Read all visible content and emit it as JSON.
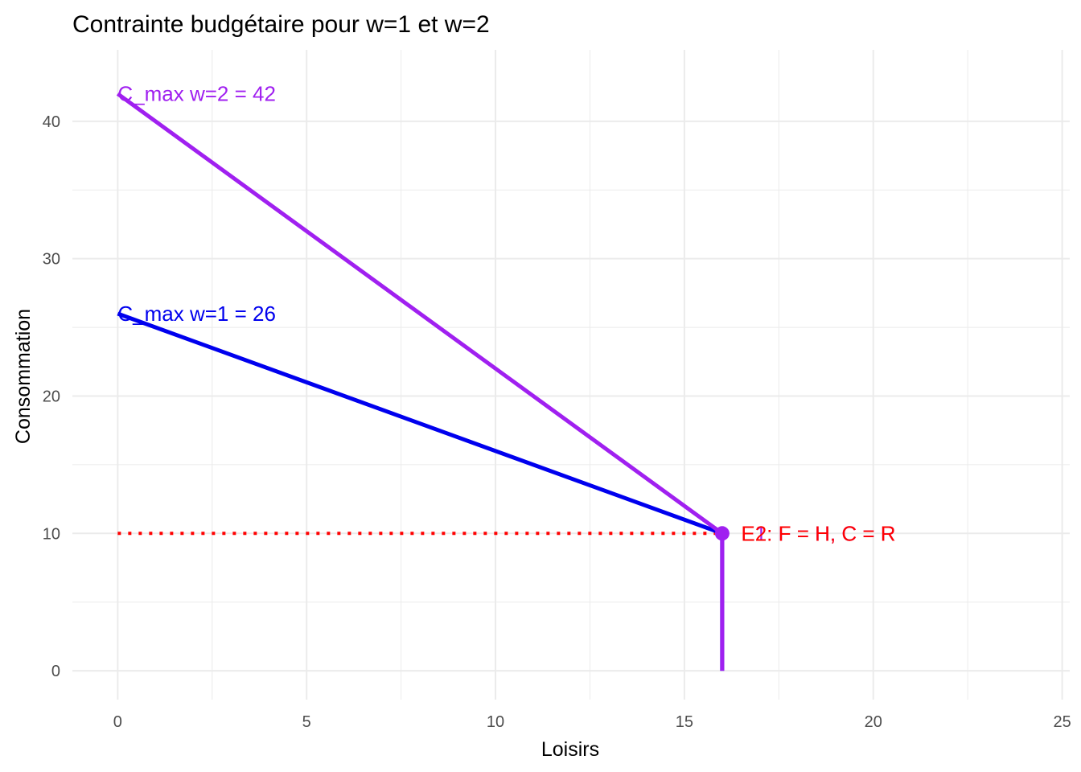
{
  "chart_data": {
    "type": "line",
    "title": "Contrainte budgétaire pour w=1 et w=2",
    "xlabel": "Loisirs",
    "ylabel": "Consommation",
    "xlim": [
      -1.2,
      25.2
    ],
    "ylim": [
      -2.1,
      45.2
    ],
    "x_ticks": [
      0,
      5,
      10,
      15,
      20,
      25
    ],
    "y_ticks": [
      0,
      10,
      20,
      30,
      40
    ],
    "x_tick_labels": [
      "0",
      "5",
      "10",
      "15",
      "20",
      "25"
    ],
    "y_tick_labels": [
      "0",
      "10",
      "20",
      "30",
      "40"
    ],
    "grid": true,
    "legend": "none",
    "colors": {
      "w1": "#0000ee",
      "w2": "#a020f0",
      "reference": "#ff0000",
      "grid": "#ebebeb"
    },
    "series": [
      {
        "key": "w1",
        "x": [
          0,
          16,
          16
        ],
        "y": [
          26,
          10,
          0
        ]
      },
      {
        "key": "w2",
        "x": [
          0,
          16,
          16
        ],
        "y": [
          42,
          10,
          0
        ]
      }
    ],
    "reference_line": {
      "x": [
        0,
        16
      ],
      "y": [
        10,
        10
      ],
      "style": "dotted"
    },
    "endpoint": {
      "x": 16,
      "y": 10
    },
    "annotations": [
      {
        "key": "cmax_w2",
        "text": "C_max w=2 = 42",
        "x": 0,
        "y": 42,
        "color": "#a020f0"
      },
      {
        "key": "cmax_w1",
        "text": "C_max w=1 = 26",
        "x": 0,
        "y": 26,
        "color": "#0000ee"
      },
      {
        "key": "e1",
        "text": "E1: F = H, C = R",
        "x": 16.5,
        "y": 10,
        "color": "#a020f0"
      },
      {
        "key": "e2",
        "text": "E2: F = H, C = R",
        "x": 16.5,
        "y": 10,
        "color": "#ff0000"
      }
    ]
  }
}
